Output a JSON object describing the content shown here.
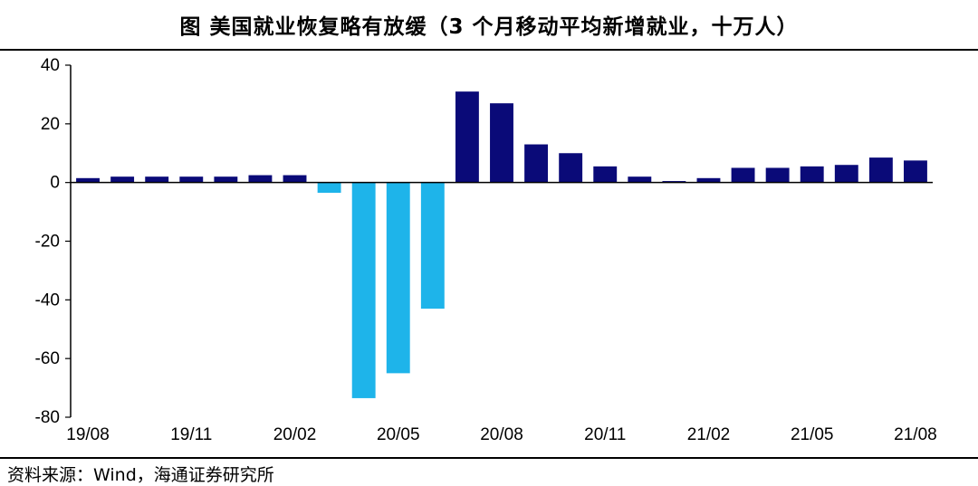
{
  "title": "图  美国就业恢复略有放缓（3 个月移动平均新增就业，十万人）",
  "source": "资料来源：Wind，海通证券研究所",
  "colors": {
    "positive": "#0a0a78",
    "negative": "#1eb4ea",
    "axis": "#000000"
  },
  "chart_data": {
    "type": "bar",
    "categories": [
      "19/08",
      "19/09",
      "19/10",
      "19/11",
      "19/12",
      "20/01",
      "20/02",
      "20/03",
      "20/04",
      "20/05",
      "20/06",
      "20/07",
      "20/08",
      "20/09",
      "20/10",
      "20/11",
      "20/12",
      "21/01",
      "21/02",
      "21/03",
      "21/04",
      "21/05",
      "21/06",
      "21/07",
      "21/08"
    ],
    "values": [
      1.5,
      2.0,
      2.0,
      2.0,
      2.0,
      2.5,
      2.5,
      -3.5,
      -73.5,
      -65.0,
      -43.0,
      31.0,
      27.0,
      13.0,
      10.0,
      5.5,
      2.0,
      0.5,
      1.5,
      5.0,
      5.0,
      5.5,
      6.0,
      8.5,
      7.5
    ],
    "x_tick_labels": [
      "19/08",
      "19/11",
      "20/02",
      "20/05",
      "20/08",
      "20/11",
      "21/02",
      "21/05",
      "21/08"
    ],
    "y_ticks": [
      "40",
      "20",
      "0",
      "-20",
      "-40",
      "-60",
      "-80"
    ],
    "ylim": [
      -80,
      40
    ],
    "xlabel": "",
    "ylabel": "",
    "grid": false
  }
}
